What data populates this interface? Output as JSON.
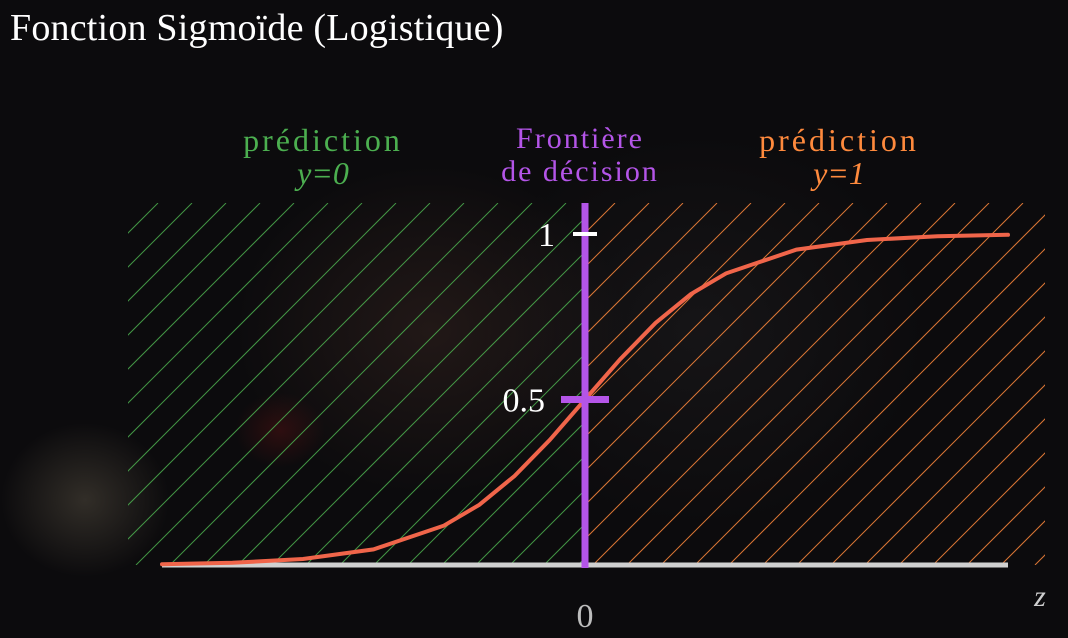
{
  "title": "Fonction Sigmoïde (Logistique)",
  "colors": {
    "green": "#4caf50",
    "orange": "#ff8a3d",
    "purple": "#b455e8",
    "curve": "#f0654a",
    "axis": "#d0d0d0",
    "text": "#ffffff"
  },
  "chart_data": {
    "type": "line",
    "xlabel": "z",
    "xlim": [
      -6,
      6
    ],
    "ylim": [
      0,
      1
    ],
    "x_ticks": [
      {
        "value": 0,
        "label": "0"
      }
    ],
    "y_ticks": [
      {
        "value": 1,
        "label": "1"
      },
      {
        "value": 0.5,
        "label": "0.5"
      }
    ],
    "series": [
      {
        "x": [
          -6,
          -5,
          -4,
          -3,
          -2,
          -1.5,
          -1,
          -0.5,
          0,
          0.5,
          1,
          1.5,
          2,
          3,
          4,
          5,
          6
        ],
        "y": [
          0.0025,
          0.0067,
          0.018,
          0.047,
          0.119,
          0.182,
          0.269,
          0.378,
          0.5,
          0.622,
          0.731,
          0.818,
          0.881,
          0.953,
          0.982,
          0.9933,
          0.9975
        ]
      }
    ],
    "regions": [
      {
        "name": "prediction-0",
        "label_line1": "prédiction",
        "label_line2": "y=0",
        "x_from": -6,
        "x_to": 0
      },
      {
        "name": "prediction-1",
        "label_line1": "prédiction",
        "label_line2": "y=1",
        "x_from": 0,
        "x_to": 6
      }
    ],
    "boundary": {
      "x": 0,
      "label_line1": "Frontière",
      "label_line2": "de décision"
    }
  }
}
